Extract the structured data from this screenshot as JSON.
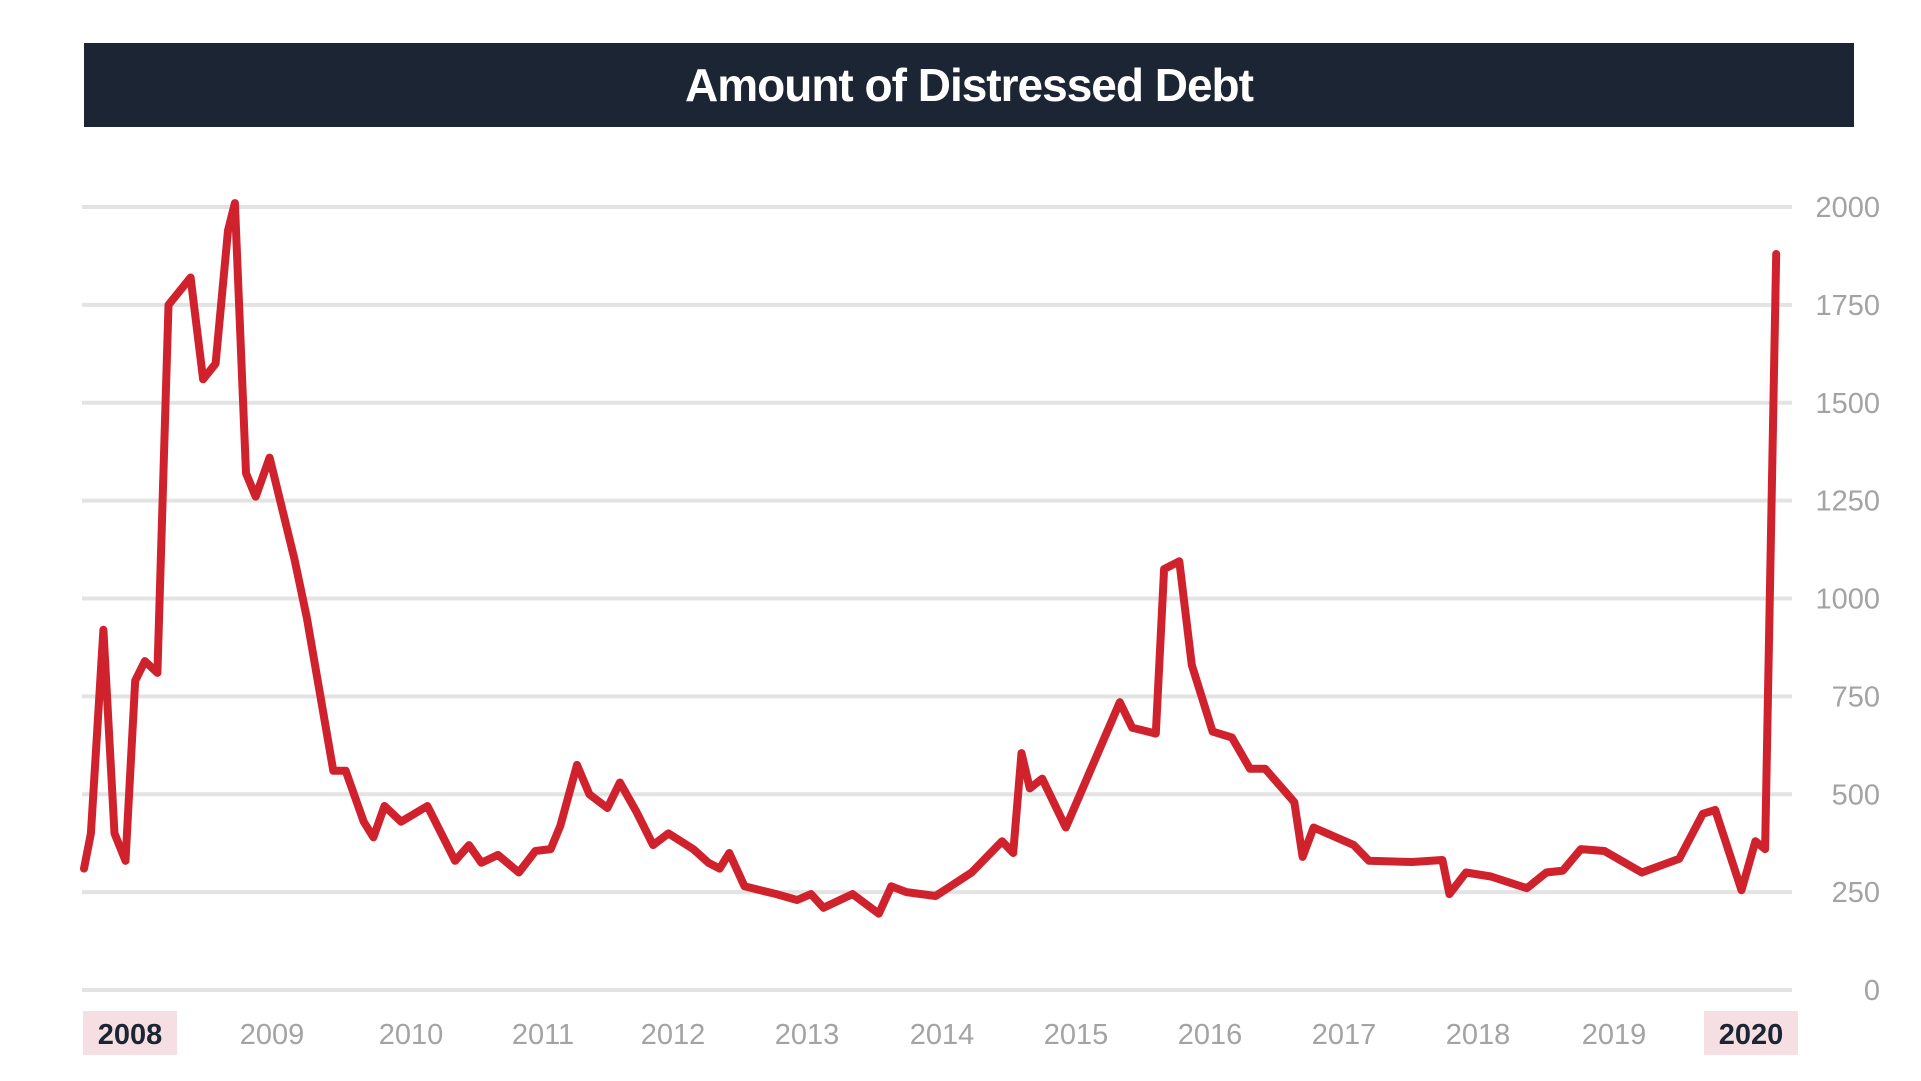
{
  "chart_data": {
    "type": "line",
    "title": "Amount of Distressed Debt",
    "xlabel": "",
    "ylabel": "",
    "ylim": [
      0,
      2000
    ],
    "yticks": [
      0,
      250,
      500,
      750,
      1000,
      1250,
      1500,
      1750,
      2000
    ],
    "xlim": [
      2008.0,
      2020.45
    ],
    "xticks": [
      "2008",
      "2009",
      "2010",
      "2011",
      "2012",
      "2013",
      "2014",
      "2015",
      "2016",
      "2017",
      "2018",
      "2019",
      "2020"
    ],
    "highlighted_xticks": [
      "2008",
      "2020"
    ],
    "grid": true,
    "line_color": "#d0222c",
    "series": [
      {
        "x": [
          2008.0,
          2008.05,
          2008.14,
          2008.22,
          2008.3,
          2008.37,
          2008.44,
          2008.53,
          2008.61,
          2008.77,
          2008.86,
          2008.95,
          2009.04,
          2009.09,
          2009.17,
          2009.24,
          2009.34,
          2009.52,
          2009.61,
          2009.8,
          2009.89,
          2010.02,
          2010.09,
          2010.17,
          2010.29,
          2010.48,
          2010.68,
          2010.78,
          2010.87,
          2010.99,
          2011.14,
          2011.26,
          2011.37,
          2011.44,
          2011.56,
          2011.65,
          2011.78,
          2011.87,
          2011.99,
          2012.11,
          2012.22,
          2012.4,
          2012.51,
          2012.59,
          2012.66,
          2012.77,
          2013.0,
          2013.15,
          2013.25,
          2013.34,
          2013.55,
          2013.74,
          2013.83,
          2013.94,
          2014.15,
          2014.41,
          2014.63,
          2014.71,
          2014.77,
          2014.83,
          2014.92,
          2015.09,
          2015.23,
          2015.48,
          2015.57,
          2015.74,
          2015.8,
          2015.91,
          2016.0,
          2016.15,
          2016.29,
          2016.42,
          2016.53,
          2016.74,
          2016.8,
          2016.88,
          2017.17,
          2017.28,
          2017.59,
          2017.81,
          2017.86,
          2017.98,
          2018.16,
          2018.42,
          2018.56,
          2018.68,
          2018.81,
          2018.98,
          2019.25,
          2019.52,
          2019.69,
          2019.78,
          2019.97,
          2020.07,
          2020.14,
          2020.22
        ],
        "y": [
          310,
          400,
          920,
          400,
          330,
          790,
          840,
          810,
          1750,
          1820,
          1560,
          1600,
          1940,
          2010,
          1320,
          1260,
          1360,
          1100,
          950,
          560,
          560,
          430,
          390,
          470,
          430,
          470,
          330,
          370,
          325,
          345,
          300,
          355,
          360,
          420,
          575,
          500,
          465,
          530,
          455,
          370,
          400,
          360,
          325,
          310,
          350,
          265,
          245,
          230,
          245,
          210,
          245,
          195,
          265,
          250,
          240,
          300,
          380,
          350,
          605,
          515,
          540,
          415,
          530,
          735,
          670,
          655,
          1075,
          1095,
          830,
          660,
          645,
          565,
          565,
          480,
          340,
          415,
          370,
          330,
          327,
          332,
          245,
          300,
          290,
          260,
          300,
          305,
          360,
          355,
          300,
          335,
          450,
          460,
          255,
          380,
          360,
          1880
        ]
      }
    ]
  }
}
